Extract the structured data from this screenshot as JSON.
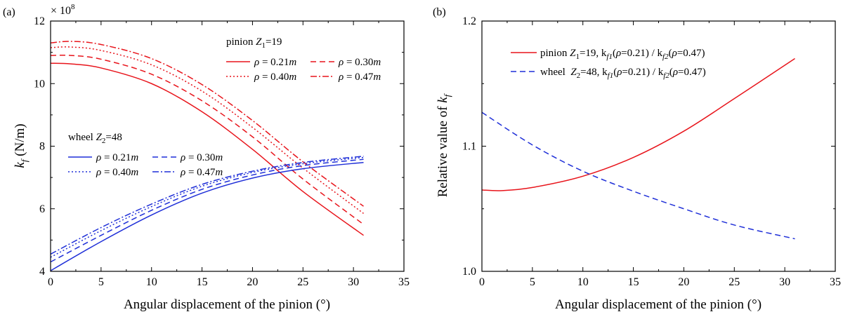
{
  "chart_data": [
    {
      "type": "line",
      "panel_label": "(a)",
      "title": "",
      "xlabel": "Angular displacement of the pinion (°)",
      "ylabel_main": "k",
      "ylabel_sub": "f",
      "ylabel_unit": " (N/m)",
      "y_multiplier_text": "× 10",
      "y_multiplier_exp": "8",
      "xlim": [
        0,
        35
      ],
      "ylim": [
        4,
        12
      ],
      "xticks": [
        0,
        5,
        10,
        15,
        20,
        25,
        30,
        35
      ],
      "yticks": [
        4,
        6,
        8,
        10,
        12
      ],
      "groups": [
        {
          "name": "pinion",
          "title": "pinion",
          "z_symbol": "Z",
          "z_sub": "1",
          "z_value": "=19",
          "color": "#e8141b",
          "series": [
            {
              "name": "ρ = 0.21m",
              "rho_value": "0.21",
              "dash": "solid",
              "x": [
                0,
                2,
                5,
                10,
                15,
                20,
                25,
                31
              ],
              "values": [
                10.65,
                10.63,
                10.5,
                10.0,
                9.1,
                7.9,
                6.55,
                5.15
              ]
            },
            {
              "name": "ρ = 0.30m",
              "rho_value": "0.30",
              "dash": "dash",
              "x": [
                0,
                2,
                5,
                10,
                15,
                20,
                25,
                31
              ],
              "values": [
                10.9,
                10.9,
                10.78,
                10.3,
                9.45,
                8.3,
                6.95,
                5.5
              ]
            },
            {
              "name": "ρ = 0.40m",
              "rho_value": "0.40",
              "dash": "dot",
              "x": [
                0,
                2,
                5,
                10,
                15,
                20,
                25,
                31
              ],
              "values": [
                11.15,
                11.17,
                11.06,
                10.6,
                9.76,
                8.6,
                7.3,
                5.85
              ]
            },
            {
              "name": "ρ = 0.47m",
              "rho_value": "0.47",
              "dash": "dashdot",
              "x": [
                0,
                2,
                5,
                10,
                15,
                20,
                25,
                31
              ],
              "values": [
                11.3,
                11.35,
                11.25,
                10.8,
                9.97,
                8.82,
                7.5,
                6.08
              ]
            }
          ]
        },
        {
          "name": "wheel",
          "title": "wheel",
          "z_symbol": "Z",
          "z_sub": "2",
          "z_value": "=48",
          "color": "#1f2fd8",
          "series": [
            {
              "name": "ρ = 0.21m",
              "rho_value": "0.21",
              "dash": "solid",
              "x": [
                0,
                5,
                10,
                15,
                20,
                25,
                31
              ],
              "values": [
                4.02,
                4.95,
                5.8,
                6.5,
                6.98,
                7.28,
                7.48
              ]
            },
            {
              "name": "ρ = 0.30m",
              "rho_value": "0.30",
              "dash": "dash",
              "x": [
                0,
                5,
                10,
                15,
                20,
                25,
                31
              ],
              "values": [
                4.3,
                5.15,
                5.95,
                6.62,
                7.08,
                7.38,
                7.58
              ]
            },
            {
              "name": "ρ = 0.40m",
              "rho_value": "0.40",
              "dash": "dot",
              "x": [
                0,
                5,
                10,
                15,
                20,
                25,
                31
              ],
              "values": [
                4.45,
                5.3,
                6.07,
                6.72,
                7.16,
                7.44,
                7.64
              ]
            },
            {
              "name": "ρ = 0.47m",
              "rho_value": "0.47",
              "dash": "dashdot",
              "x": [
                0,
                5,
                10,
                15,
                20,
                25,
                31
              ],
              "values": [
                4.55,
                5.4,
                6.15,
                6.78,
                7.2,
                7.48,
                7.68
              ]
            }
          ]
        }
      ]
    },
    {
      "type": "line",
      "panel_label": "(b)",
      "title": "",
      "xlabel": "Angular displacement of the pinion (°)",
      "ylabel_main": "Relative value of ",
      "ylabel_k": "k",
      "ylabel_sub": "f",
      "xlim": [
        0,
        35
      ],
      "ylim": [
        1.0,
        1.2
      ],
      "xticks": [
        0,
        5,
        10,
        15,
        20,
        25,
        30,
        35
      ],
      "yticks": [
        1.0,
        1.1,
        1.2
      ],
      "ytick_labels": [
        "1.0",
        "1.1",
        "1.2"
      ],
      "series": [
        {
          "name": "pinion Z1=19, kf1(ρ=0.21) / kf2(ρ=0.47)",
          "legend_prefix": "pinion ",
          "z_sub": "1",
          "z_value": "=19, k",
          "k1_sub": "f1",
          "mid": "(",
          "rho": "ρ",
          "rho1": "=0.21) / k",
          "k2_sub": "f2",
          "rho2_open": "(",
          "rho2": "=0.47)",
          "color": "#e8141b",
          "dash": "solid",
          "x": [
            0,
            2,
            5,
            10,
            15,
            20,
            25,
            31
          ],
          "values": [
            1.065,
            1.0645,
            1.067,
            1.076,
            1.091,
            1.112,
            1.138,
            1.17
          ]
        },
        {
          "name": "wheel Z2=48, kf1(ρ=0.21) / kf2(ρ=0.47)",
          "legend_prefix": "wheel  ",
          "z_sub": "2",
          "z_value": "=48, k",
          "k1_sub": "f1",
          "mid": "(",
          "rho": "ρ",
          "rho1": "=0.21) / k",
          "k2_sub": "f2",
          "rho2_open": "(",
          "rho2": "=0.47)",
          "color": "#1f2fd8",
          "dash": "dash",
          "x": [
            0,
            5,
            10,
            15,
            20,
            25,
            31
          ],
          "values": [
            1.127,
            1.101,
            1.08,
            1.064,
            1.05,
            1.037,
            1.026
          ]
        }
      ]
    }
  ]
}
